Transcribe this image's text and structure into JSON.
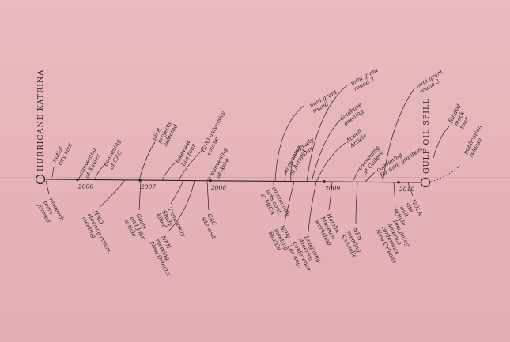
{
  "start_event": "HURRICANE KATRINA",
  "end_event": "GULF OIL SPILL",
  "years": [
    "2006",
    "2007",
    "2008",
    "2009",
    "2010"
  ],
  "events_above": [
    [
      "initial",
      "city visit"
    ],
    [
      "convening",
      "at Xavier"
    ],
    [
      "convening",
      "at CAC"
    ],
    [
      "pilot",
      "projects",
      "selected"
    ],
    [
      "lakeview",
      "bus tour"
    ],
    [
      "HNO university",
      "course"
    ],
    [
      "convening",
      "at Ashé"
    ],
    [
      "mini grant",
      "round 1"
    ],
    [
      "Pixely",
      "Day"
    ],
    [
      "convening",
      "at Artspot"
    ],
    [
      "mini grant",
      "round 2"
    ],
    [
      "database",
      "opening"
    ],
    [
      "Atwell",
      "Article"
    ],
    [
      "convening",
      "at Gallery"
    ],
    [
      "convening",
      "for mini grantees"
    ],
    [
      "mini grant",
      "round 3"
    ],
    [
      "funded",
      "mock",
      "tour"
    ],
    [
      "publication",
      "release"
    ]
  ],
  "events_below": [
    [
      "research",
      "team",
      "formed"
    ],
    [
      "HNO",
      "steering comm.",
      "meeting"
    ],
    [
      "Gouis",
      "and John",
      "article"
    ],
    [
      "Transitway",
      "Study",
      "killed"
    ],
    [
      "NPN",
      "meeting",
      "New Orleans"
    ],
    [
      "CAC",
      "site visit"
    ],
    [
      "community",
      "arts conf.",
      "at MICA"
    ],
    [
      "NPN",
      "meeting",
      "Seattle"
    ],
    [
      "Imagining",
      "America",
      "conference",
      "Los Ang."
    ],
    [
      "Hamlin",
      "Museum",
      "workshop"
    ],
    [
      "NPN",
      "meeting",
      "Knoxville"
    ],
    [
      "Imagining",
      "America",
      "conference",
      "New Orleans"
    ],
    [
      "NOLA",
      "site",
      "visit",
      "article"
    ]
  ]
}
